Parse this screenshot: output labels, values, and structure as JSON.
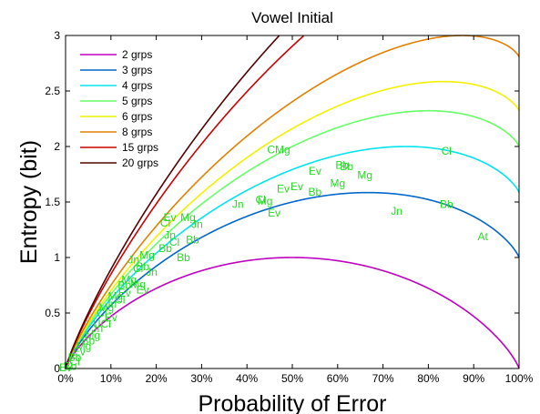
{
  "chart_data": {
    "type": "line",
    "title": "Vowel Initial",
    "xlabel": "Probability of Error",
    "ylabel": "Entropy (bit)",
    "xlim": [
      0,
      1
    ],
    "ylim": [
      0,
      3
    ],
    "xticks": [
      "0%",
      "10%",
      "20%",
      "30%",
      "40%",
      "50%",
      "60%",
      "70%",
      "80%",
      "90%",
      "100%"
    ],
    "yticks": [
      "0",
      "0.5",
      "1",
      "1.5",
      "2",
      "2.5",
      "3"
    ],
    "legend_position": "top-left",
    "series": [
      {
        "name": "2 grps",
        "groups": 2,
        "color": "#c000c0"
      },
      {
        "name": "3 grps",
        "groups": 3,
        "color": "#0066cc"
      },
      {
        "name": "4 grps",
        "groups": 4,
        "color": "#00e5ee"
      },
      {
        "name": "5 grps",
        "groups": 5,
        "color": "#66ff66"
      },
      {
        "name": "6 grps",
        "groups": 6,
        "color": "#f2f200"
      },
      {
        "name": "8 grps",
        "groups": 8,
        "color": "#e08000"
      },
      {
        "name": "15 grps",
        "groups": 15,
        "color": "#cc0000"
      },
      {
        "name": "20 grps",
        "groups": 20,
        "color": "#550000"
      }
    ],
    "annotation_color": "#22dd22",
    "points": [
      {
        "label": "Cl",
        "x": 0.84,
        "y": 1.96
      },
      {
        "label": "CMg",
        "x": 0.47,
        "y": 1.97
      },
      {
        "label": "Bb",
        "x": 0.61,
        "y": 1.83
      },
      {
        "label": "Bb",
        "x": 0.62,
        "y": 1.82
      },
      {
        "label": "Ev",
        "x": 0.55,
        "y": 1.78
      },
      {
        "label": "Mg",
        "x": 0.66,
        "y": 1.74
      },
      {
        "label": "Mg",
        "x": 0.6,
        "y": 1.67
      },
      {
        "label": "Ev",
        "x": 0.51,
        "y": 1.64
      },
      {
        "label": "Ev",
        "x": 0.48,
        "y": 1.62
      },
      {
        "label": "Bb",
        "x": 0.55,
        "y": 1.59
      },
      {
        "label": "Mg",
        "x": 0.44,
        "y": 1.51
      },
      {
        "label": "Cl",
        "x": 0.43,
        "y": 1.52
      },
      {
        "label": "Jn",
        "x": 0.38,
        "y": 1.48
      },
      {
        "label": "Ev",
        "x": 0.46,
        "y": 1.4
      },
      {
        "label": "Bb",
        "x": 0.84,
        "y": 1.48
      },
      {
        "label": "Jn",
        "x": 0.73,
        "y": 1.42
      },
      {
        "label": "At",
        "x": 0.92,
        "y": 1.19
      },
      {
        "label": "Ev",
        "x": 0.23,
        "y": 1.36
      },
      {
        "label": "Mg",
        "x": 0.27,
        "y": 1.36
      },
      {
        "label": "Cl",
        "x": 0.22,
        "y": 1.31
      },
      {
        "label": "Jn",
        "x": 0.29,
        "y": 1.3
      },
      {
        "label": "Jn",
        "x": 0.23,
        "y": 1.2
      },
      {
        "label": "Bb",
        "x": 0.28,
        "y": 1.16
      },
      {
        "label": "Cl",
        "x": 0.24,
        "y": 1.14
      },
      {
        "label": "Bb",
        "x": 0.22,
        "y": 1.08
      },
      {
        "label": "Bb",
        "x": 0.26,
        "y": 1.0
      },
      {
        "label": "Mg",
        "x": 0.18,
        "y": 1.02
      },
      {
        "label": "Jn",
        "x": 0.15,
        "y": 0.98
      },
      {
        "label": "Bb",
        "x": 0.17,
        "y": 0.92
      },
      {
        "label": "Cl",
        "x": 0.16,
        "y": 0.9
      },
      {
        "label": "Jn",
        "x": 0.19,
        "y": 0.87
      },
      {
        "label": "Mg",
        "x": 0.14,
        "y": 0.8
      },
      {
        "label": "Mg",
        "x": 0.16,
        "y": 0.76
      },
      {
        "label": "Bb",
        "x": 0.13,
        "y": 0.75
      },
      {
        "label": "Ev",
        "x": 0.17,
        "y": 0.71
      },
      {
        "label": "Ev",
        "x": 0.13,
        "y": 0.68
      },
      {
        "label": "Mg",
        "x": 0.11,
        "y": 0.65
      },
      {
        "label": "Cl",
        "x": 0.12,
        "y": 0.62
      },
      {
        "label": "Jn",
        "x": 0.1,
        "y": 0.58
      },
      {
        "label": "Mg",
        "x": 0.09,
        "y": 0.55
      },
      {
        "label": "Cl",
        "x": 0.08,
        "y": 0.5
      },
      {
        "label": "Ev",
        "x": 0.1,
        "y": 0.46
      },
      {
        "label": "UCl",
        "x": 0.08,
        "y": 0.4
      },
      {
        "label": "Jn",
        "x": 0.07,
        "y": 0.36
      },
      {
        "label": "Mg",
        "x": 0.06,
        "y": 0.3
      },
      {
        "label": "Bb",
        "x": 0.05,
        "y": 0.25
      },
      {
        "label": "Mg",
        "x": 0.04,
        "y": 0.2
      },
      {
        "label": "Ev",
        "x": 0.03,
        "y": 0.15
      },
      {
        "label": "Bb",
        "x": 0.02,
        "y": 0.1
      },
      {
        "label": "Cl",
        "x": 0.02,
        "y": 0.06
      },
      {
        "label": "Bb",
        "x": 0.01,
        "y": 0.02
      },
      {
        "label": "Ev",
        "x": 0.0,
        "y": 0.01
      }
    ]
  }
}
